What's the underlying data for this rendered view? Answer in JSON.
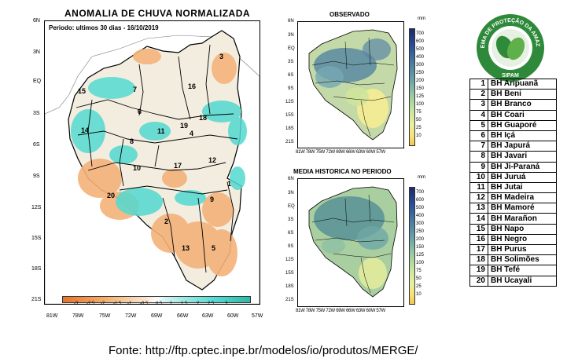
{
  "main_map": {
    "title": "ANOMALIA DE CHUVA NORMALIZADA",
    "period": "Periodo: ultimos 30 dias - 16/10/2019",
    "lat_ticks": [
      "6N",
      "3N",
      "EQ",
      "3S",
      "6S",
      "9S",
      "12S",
      "15S",
      "18S",
      "21S"
    ],
    "lon_ticks": [
      "81W",
      "78W",
      "75W",
      "72W",
      "69W",
      "66W",
      "63W",
      "60W",
      "57W"
    ],
    "colorbar_ticks": [
      "-3",
      "-2.5",
      "-2",
      "-1.5",
      "-1",
      "-0.5",
      "0.5",
      "1",
      "1.5",
      "2",
      "2.5",
      "3"
    ],
    "basin_labels": [
      "1",
      "2",
      "3",
      "4",
      "5",
      "6",
      "7",
      "8",
      "9",
      "10",
      "11",
      "12",
      "13",
      "14",
      "15",
      "16",
      "17",
      "18",
      "19",
      "20"
    ]
  },
  "observed_map": {
    "title": "OBSERVADO",
    "unit": "mm",
    "lat_ticks": [
      "6N",
      "3N",
      "EQ",
      "3S",
      "6S",
      "9S",
      "12S",
      "15S",
      "18S",
      "21S"
    ],
    "lon_ticks": "81W 78W 75W 72W 69W 66W 63W 60W 57W",
    "colorbar_ticks": [
      "700",
      "600",
      "500",
      "400",
      "300",
      "250",
      "200",
      "150",
      "125",
      "100",
      "75",
      "50",
      "25",
      "10"
    ]
  },
  "historical_map": {
    "title": "MEDIA HISTORICA NO PERIODO",
    "unit": "mm",
    "lat_ticks": [
      "6N",
      "3N",
      "EQ",
      "3S",
      "6S",
      "9S",
      "12S",
      "15S",
      "18S",
      "21S"
    ],
    "lon_ticks": "81W 78W 75W 72W 69W 66W 63W 60W 57W",
    "colorbar_ticks": [
      "700",
      "600",
      "500",
      "400",
      "300",
      "250",
      "200",
      "150",
      "125",
      "100",
      "75",
      "50",
      "25",
      "10"
    ]
  },
  "logo": {
    "text": "SISTEMA DE PROTEÇÃO DA AMAZÔNIA",
    "acronym": "SIPAM"
  },
  "basins": [
    {
      "num": "1",
      "name": "BH Aripuanã"
    },
    {
      "num": "2",
      "name": "BH Beni"
    },
    {
      "num": "3",
      "name": "BH Branco"
    },
    {
      "num": "4",
      "name": "BH Coari"
    },
    {
      "num": "5",
      "name": "BH Guaporé"
    },
    {
      "num": "6",
      "name": "BH Içá"
    },
    {
      "num": "7",
      "name": "BH Japurá"
    },
    {
      "num": "8",
      "name": "BH Javari"
    },
    {
      "num": "9",
      "name": "BH Ji-Paraná"
    },
    {
      "num": "10",
      "name": "BH Juruá"
    },
    {
      "num": "11",
      "name": "BH Jutai"
    },
    {
      "num": "12",
      "name": "BH Madeira"
    },
    {
      "num": "13",
      "name": "BH Mamoré"
    },
    {
      "num": "14",
      "name": "BH Marañon"
    },
    {
      "num": "15",
      "name": "BH Napo"
    },
    {
      "num": "16",
      "name": "BH Negro"
    },
    {
      "num": "17",
      "name": "BH Purus"
    },
    {
      "num": "18",
      "name": "BH Solimões"
    },
    {
      "num": "19",
      "name": "BH Tefé"
    },
    {
      "num": "20",
      "name": "BH Ucayali"
    }
  ],
  "source": "Fonte: http://ftp.cptec.inpe.br/modelos/io/produtos/MERGE/",
  "colors": {
    "dry": "#f4b27a",
    "wet": "#52d9d0",
    "observed_wet": "#4b7fa0",
    "observed_dry": "#f7ec93"
  }
}
